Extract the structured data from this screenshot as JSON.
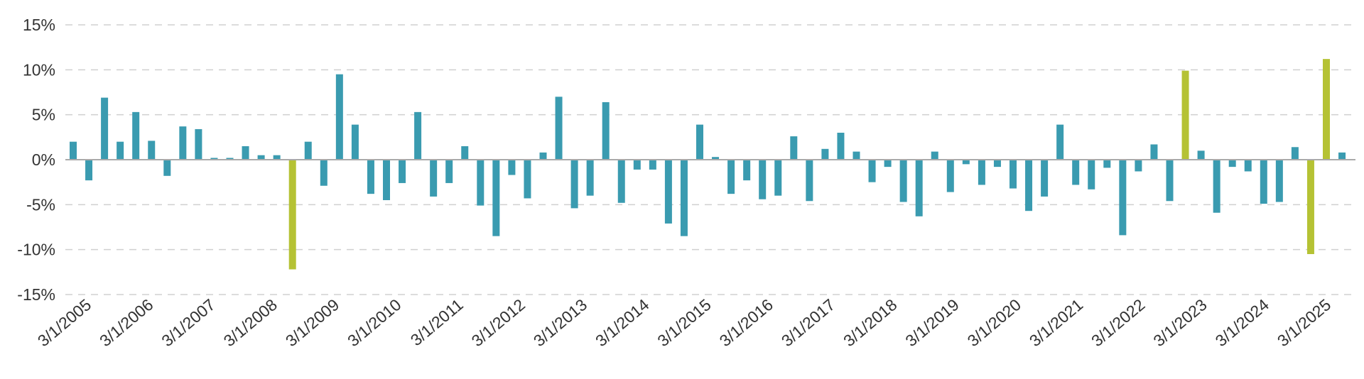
{
  "chart_data": {
    "type": "bar",
    "title": "",
    "xlabel": "",
    "ylabel": "",
    "ylim": [
      -15,
      15
    ],
    "yticks": [
      15,
      10,
      5,
      0,
      -5,
      -10,
      -15
    ],
    "ytick_labels": [
      "15%",
      "10%",
      "5%",
      "0%",
      "-5%",
      "-10%",
      "-15%"
    ],
    "x_tick_labels": [
      "3/1/2005",
      "3/1/2006",
      "3/1/2007",
      "3/1/2008",
      "3/1/2009",
      "3/1/2010",
      "3/1/2011",
      "3/1/2012",
      "3/1/2013",
      "3/1/2014",
      "3/1/2015",
      "3/1/2016",
      "3/1/2017",
      "3/1/2018",
      "3/1/2019",
      "3/1/2020",
      "3/1/2021",
      "3/1/2022",
      "3/1/2023",
      "3/1/2024",
      "3/1/2025"
    ],
    "grid": true,
    "colors": {
      "normal": "#3a9bb0",
      "highlight": "#b5c234",
      "grid": "#d0d0d0",
      "axis": "#aaaaaa",
      "text": "#333333"
    },
    "values": [
      2.0,
      -2.3,
      6.9,
      2.0,
      5.3,
      2.1,
      -1.8,
      3.7,
      3.4,
      0.2,
      0.2,
      1.5,
      0.5,
      0.5,
      -12.2,
      2.0,
      -2.9,
      9.5,
      3.9,
      -3.8,
      -4.5,
      -2.6,
      5.3,
      -4.1,
      -2.6,
      1.5,
      -5.1,
      -8.5,
      -1.7,
      -4.3,
      0.8,
      7.0,
      -5.4,
      -4.0,
      6.4,
      -4.8,
      -1.1,
      -1.1,
      -7.1,
      -8.5,
      3.9,
      0.3,
      -3.8,
      -2.3,
      -4.4,
      -4.0,
      2.6,
      -4.6,
      1.2,
      3.0,
      0.9,
      -2.5,
      -0.8,
      -4.7,
      -6.3,
      0.9,
      -3.6,
      -0.5,
      -2.8,
      -0.8,
      -3.2,
      -5.7,
      -4.1,
      3.9,
      -2.8,
      -3.3,
      -0.9,
      -8.4,
      -1.3,
      1.7,
      -4.6,
      9.9,
      1.0,
      -5.9,
      -0.8,
      -1.3,
      -4.9,
      -4.7,
      1.4,
      -10.5,
      11.2,
      0.8
    ],
    "highlight_indices": [
      14,
      71,
      79,
      80
    ]
  }
}
